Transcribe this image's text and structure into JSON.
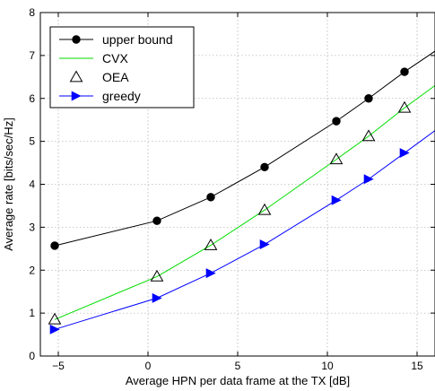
{
  "chart_data": {
    "type": "line",
    "xlabel": "Average HPN per data frame at the TX [dB]",
    "ylabel": "Average rate [bits/sec/Hz]",
    "xlim": [
      -6,
      16
    ],
    "ylim": [
      0,
      8
    ],
    "xticks": [
      -5,
      0,
      5,
      10,
      15
    ],
    "yticks": [
      0,
      1,
      2,
      3,
      4,
      5,
      6,
      7,
      8
    ],
    "grid": true,
    "legend_position": "top-left",
    "series": [
      {
        "name": "upper bound",
        "color": "#000000",
        "marker": "filled-circle",
        "line": true,
        "x": [
          -5.2,
          0.5,
          3.5,
          6.5,
          10.5,
          12.3,
          14.3,
          16
        ],
        "y": [
          2.57,
          3.15,
          3.7,
          4.4,
          5.47,
          6.0,
          6.62,
          7.1
        ]
      },
      {
        "name": "CVX",
        "color": "#00dd00",
        "marker": "none",
        "line": true,
        "x": [
          -5.2,
          0.5,
          3.5,
          6.5,
          10.5,
          12.3,
          14.3,
          16
        ],
        "y": [
          0.85,
          1.85,
          2.58,
          3.4,
          4.58,
          5.12,
          5.78,
          6.3
        ]
      },
      {
        "name": "OEA",
        "color": "#000000",
        "marker": "open-triangle",
        "line": false,
        "x": [
          -5.2,
          0.5,
          3.5,
          6.5,
          10.5,
          12.3,
          14.3
        ],
        "y": [
          0.85,
          1.85,
          2.58,
          3.4,
          4.58,
          5.12,
          5.78
        ]
      },
      {
        "name": "greedy",
        "color": "#0000ff",
        "marker": "filled-right-triangle",
        "line": true,
        "x": [
          -5.2,
          0.5,
          3.5,
          6.5,
          10.5,
          12.3,
          14.3,
          16
        ],
        "y": [
          0.62,
          1.35,
          1.93,
          2.6,
          3.63,
          4.12,
          4.73,
          5.25
        ]
      }
    ]
  }
}
